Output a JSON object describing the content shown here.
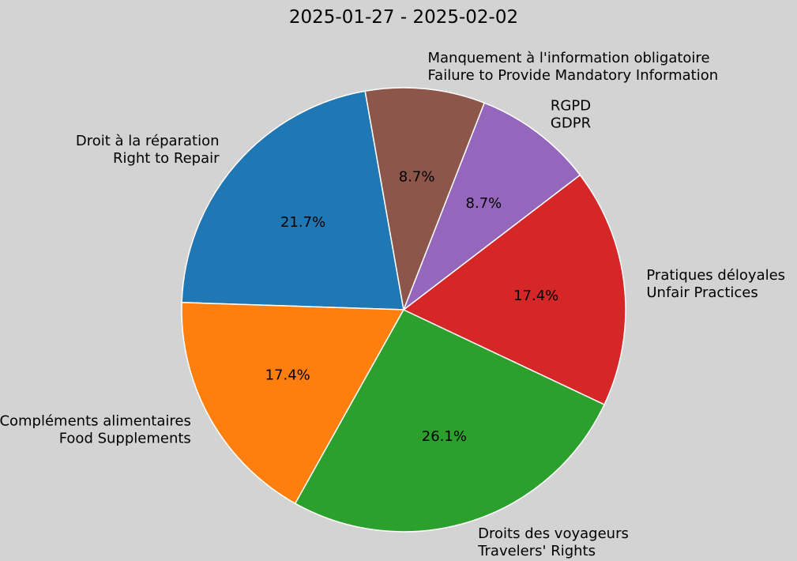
{
  "chart_data": {
    "type": "pie",
    "title": "2025-01-27 - 2025-02-02",
    "slices": [
      {
        "label_fr": "Droit à la réparation",
        "label_en": "Right to Repair",
        "percent_label": "21.7%",
        "value": 21.7,
        "color": "#1f77b4"
      },
      {
        "label_fr": "Compléments alimentaires",
        "label_en": "Food Supplements",
        "percent_label": "17.4%",
        "value": 17.4,
        "color": "#ff7f0e"
      },
      {
        "label_fr": "Droits des voyageurs",
        "label_en": "Travelers' Rights",
        "percent_label": "26.1%",
        "value": 26.1,
        "color": "#2ca02c"
      },
      {
        "label_fr": "Pratiques déloyales",
        "label_en": "Unfair Practices",
        "percent_label": "17.4%",
        "value": 17.4,
        "color": "#d62728"
      },
      {
        "label_fr": "RGPD",
        "label_en": "GDPR",
        "percent_label": "8.7%",
        "value": 8.7,
        "color": "#9467bd"
      },
      {
        "label_fr": "Manquement à l'information obligatoire",
        "label_en": "Failure to Provide Mandatory Information",
        "percent_label": "8.7%",
        "value": 8.7,
        "color": "#8c564b"
      }
    ],
    "start_angle_deg": 100,
    "direction": "counterclockwise",
    "edge_color": "#ffffff"
  }
}
